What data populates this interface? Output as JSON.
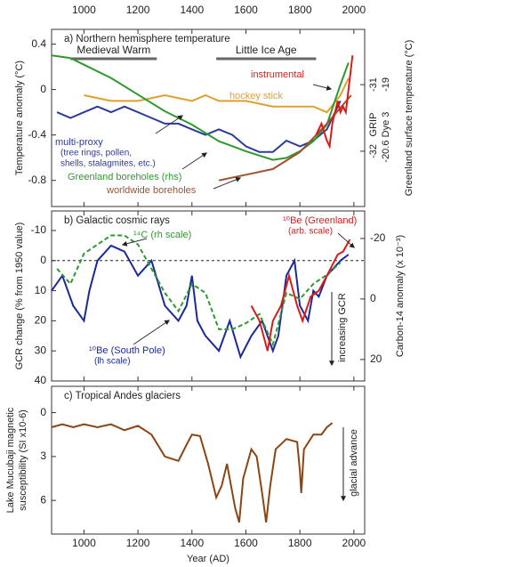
{
  "chart_data": [
    {
      "type": "line",
      "title": "a) Northern hemisphere temperature",
      "y_label": "Temperature anomaly (°C)",
      "y2_label": "Greenland surface temperature (°C)",
      "xlim": [
        880,
        2040
      ],
      "xticks": [
        1000,
        1200,
        1400,
        1600,
        1800,
        2000
      ],
      "ylim": [
        -1.03,
        0.53
      ],
      "yticks": [
        0.4,
        0,
        -0.4,
        -0.8
      ],
      "y2_name": "GRIP",
      "y2lim": [
        -32.83,
        -30.17
      ],
      "y2ticks": [
        -31,
        -32
      ],
      "y3_name": "Dye 3",
      "y3lim": [
        -21.92,
        -17.68
      ],
      "y3ticks": [
        -19,
        -20.6
      ],
      "periods": [
        {
          "label": "Medieval Warm",
          "start": 950,
          "end": 1270
        },
        {
          "label": "Little Ice Age",
          "start": 1490,
          "end": 1860
        }
      ],
      "series": [
        {
          "name": "multi-proxy",
          "note": [
            "(tree rings, pollen,",
            "shells, stalagmites, etc.)"
          ],
          "color": "#2b3a9a",
          "x": [
            900,
            950,
            1000,
            1050,
            1100,
            1150,
            1200,
            1250,
            1300,
            1350,
            1400,
            1450,
            1500,
            1550,
            1600,
            1650,
            1700,
            1750,
            1800,
            1850,
            1900,
            1950
          ],
          "values": [
            -0.2,
            -0.25,
            -0.2,
            -0.15,
            -0.2,
            -0.15,
            -0.2,
            -0.25,
            -0.3,
            -0.3,
            -0.35,
            -0.4,
            -0.35,
            -0.4,
            -0.5,
            -0.55,
            -0.55,
            -0.45,
            -0.5,
            -0.45,
            -0.35,
            -0.1
          ]
        },
        {
          "name": "hockey stick",
          "color": "#e0a030",
          "x": [
            1000,
            1100,
            1200,
            1300,
            1400,
            1450,
            1500,
            1600,
            1700,
            1800,
            1850,
            1900,
            1950,
            1980
          ],
          "values": [
            -0.05,
            -0.1,
            -0.1,
            -0.05,
            -0.1,
            -0.05,
            -0.1,
            -0.1,
            -0.15,
            -0.15,
            -0.15,
            -0.2,
            -0.05,
            0.1
          ]
        },
        {
          "name": "Greenland boreholes (rhs)",
          "color": "#2e9a2e",
          "axis": "y2",
          "x": [
            880,
            950,
            1000,
            1100,
            1200,
            1300,
            1400,
            1500,
            1600,
            1700,
            1750,
            1800,
            1850,
            1900,
            1950,
            1980
          ],
          "values": [
            -30.56,
            -30.6,
            -30.7,
            -30.9,
            -31.15,
            -31.4,
            -31.6,
            -31.85,
            -32.0,
            -32.13,
            -32.1,
            -32.0,
            -31.85,
            -31.6,
            -31.0,
            -30.67
          ]
        },
        {
          "name": "worldwide boreholes",
          "color": "#a0522d",
          "x": [
            1500,
            1600,
            1700,
            1800,
            1900,
            1990
          ],
          "values": [
            -0.8,
            -0.75,
            -0.7,
            -0.55,
            -0.3,
            -0.05
          ]
        },
        {
          "name": "instrumental",
          "color": "#dd1a1a",
          "x": [
            1860,
            1880,
            1900,
            1910,
            1920,
            1940,
            1950,
            1960,
            1970,
            1980,
            1990,
            1995
          ],
          "values": [
            -0.4,
            -0.3,
            -0.45,
            -0.5,
            -0.3,
            -0.1,
            -0.2,
            -0.15,
            -0.2,
            0.0,
            0.2,
            0.3
          ]
        }
      ]
    },
    {
      "type": "line",
      "title": "b) Galactic cosmic rays",
      "y_label": "GCR change (% from 1950 value)",
      "y2_label": "Carbon-14 anomaly (x 10⁻³)",
      "annotation": "increasing GCR",
      "xlim": [
        880,
        2040
      ],
      "xticks": [
        1000,
        1200,
        1400,
        1600,
        1800,
        2000
      ],
      "ylim": [
        40,
        -16.5
      ],
      "yticks": [
        -10,
        0,
        10,
        20,
        30,
        40
      ],
      "hline": 0,
      "y2lim": [
        27.1,
        -29.1
      ],
      "y2ticks": [
        -20,
        0,
        20
      ],
      "series": [
        {
          "name": "¹⁰Be (South Pole)",
          "note": [
            "(lh scale)"
          ],
          "color": "#1a2a9a",
          "x": [
            880,
            920,
            960,
            1000,
            1020,
            1050,
            1100,
            1150,
            1200,
            1250,
            1300,
            1350,
            1380,
            1400,
            1420,
            1450,
            1500,
            1540,
            1580,
            1620,
            1660,
            1700,
            1720,
            1750,
            1780,
            1800,
            1830,
            1850,
            1870,
            1900,
            1950,
            1980
          ],
          "values": [
            10,
            5,
            15,
            20,
            10,
            0,
            -5,
            -3,
            5,
            0,
            15,
            20,
            15,
            5,
            20,
            25,
            30,
            20,
            32,
            25,
            20,
            30,
            25,
            5,
            0,
            15,
            20,
            10,
            12,
            5,
            0,
            -2
          ]
        },
        {
          "name": "¹⁴C (rh scale)",
          "color": "#2e9a2e",
          "axis": "y2",
          "dashed": true,
          "x": [
            900,
            950,
            1000,
            1050,
            1100,
            1150,
            1200,
            1250,
            1300,
            1350,
            1400,
            1450,
            1500,
            1550,
            1600,
            1650,
            1700,
            1750,
            1800,
            1850,
            1900,
            1950
          ],
          "values": [
            -10,
            -5,
            -15,
            -18,
            -21,
            -21,
            -18,
            -10,
            -2,
            4,
            -5,
            -2,
            10,
            10,
            8,
            5,
            15,
            -2,
            0,
            -5,
            -8,
            -12
          ]
        },
        {
          "name": "¹⁰Be (Greenland)",
          "note": [
            "(arb. scale)"
          ],
          "color": "#dd1a1a",
          "x": [
            1620,
            1650,
            1680,
            1700,
            1730,
            1760,
            1790,
            1810,
            1840,
            1870,
            1900,
            1940,
            1960,
            1985
          ],
          "values": [
            15,
            20,
            30,
            20,
            15,
            5,
            15,
            20,
            12,
            10,
            5,
            -2,
            -3,
            -7
          ]
        }
      ]
    },
    {
      "type": "line",
      "title": "c) Tropical Andes glaciers",
      "y_label": [
        "Lake Mucubaji magnetic",
        "susceptibility (SI x10-6)"
      ],
      "x_label": "Year (AD)",
      "annotation": "glacial advance",
      "xlim": [
        880,
        2040
      ],
      "xticks": [
        1000,
        1200,
        1400,
        1600,
        1800,
        2000
      ],
      "ylim": [
        8.3,
        -1.8
      ],
      "yticks": [
        0,
        3,
        6
      ],
      "series": [
        {
          "color": "#8b4513",
          "x": [
            880,
            920,
            960,
            1000,
            1050,
            1100,
            1150,
            1200,
            1250,
            1300,
            1350,
            1380,
            1400,
            1430,
            1460,
            1490,
            1510,
            1530,
            1560,
            1575,
            1590,
            1620,
            1640,
            1660,
            1675,
            1690,
            1710,
            1750,
            1790,
            1800,
            1805,
            1815,
            1850,
            1880,
            1900,
            1920
          ],
          "values": [
            1.0,
            0.8,
            1.0,
            0.8,
            1.0,
            0.8,
            1.2,
            0.9,
            1.5,
            3.0,
            3.3,
            2.2,
            1.5,
            1.6,
            3.5,
            5.8,
            5.0,
            3.5,
            6.5,
            7.5,
            4.5,
            2.5,
            3.0,
            5.5,
            7.5,
            5.0,
            2.5,
            1.8,
            2.0,
            4.0,
            5.5,
            2.5,
            1.5,
            1.5,
            1.0,
            0.7
          ]
        }
      ]
    }
  ]
}
